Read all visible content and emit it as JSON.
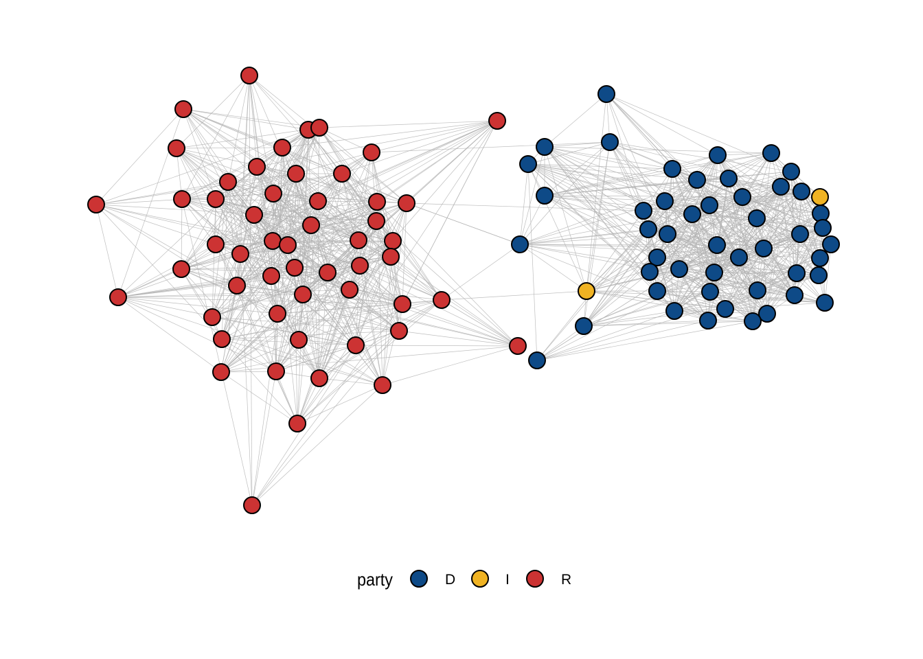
{
  "legend": {
    "title": "party",
    "items": [
      {
        "label": "D",
        "color": "#0e4a87"
      },
      {
        "label": "I",
        "color": "#f0b323"
      },
      {
        "label": "R",
        "color": "#cc3333"
      }
    ]
  },
  "colors": {
    "D": "#0e4a87",
    "I": "#f0b323",
    "R": "#cc3333",
    "edge": "#b3b3b3",
    "node_outline": "#000000"
  }
}
